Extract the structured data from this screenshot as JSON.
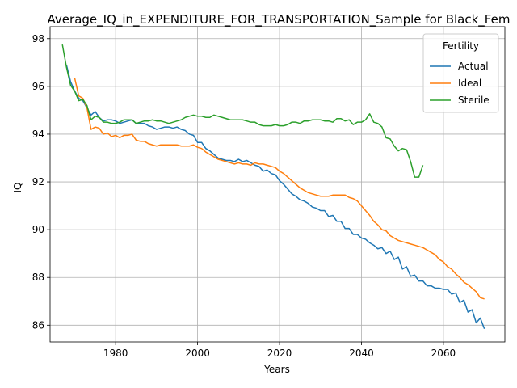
{
  "chart_data": {
    "type": "line",
    "title": "Average_IQ_in_EXPENDITURE_FOR_TRANSPORTATION_Sample for Black_Fem",
    "xlabel": "Years",
    "ylabel": "IQ",
    "xlim": [
      1964,
      2075
    ],
    "ylim": [
      85.3,
      98.5
    ],
    "xticks": [
      1980,
      2000,
      2020,
      2040,
      2060
    ],
    "yticks": [
      86,
      88,
      90,
      92,
      94,
      96,
      98
    ],
    "grid": true,
    "legend": {
      "title": "Fertility",
      "placement": "top-right"
    },
    "series": [
      {
        "name": "Actual",
        "color": "#1f77b4",
        "points": [
          [
            1968,
            96.9
          ],
          [
            1969,
            96.2
          ],
          [
            1970,
            95.8
          ],
          [
            1971,
            95.5
          ],
          [
            1972,
            95.4
          ],
          [
            1973,
            95.1
          ],
          [
            1974,
            94.8
          ],
          [
            1975,
            94.95
          ],
          [
            1976,
            94.7
          ],
          [
            1977,
            94.55
          ],
          [
            1978,
            94.6
          ],
          [
            1979,
            94.6
          ],
          [
            1980,
            94.55
          ],
          [
            1981,
            94.45
          ],
          [
            1982,
            94.5
          ],
          [
            1983,
            94.55
          ],
          [
            1984,
            94.6
          ],
          [
            1985,
            94.45
          ],
          [
            1986,
            94.45
          ],
          [
            1987,
            94.45
          ],
          [
            1988,
            94.35
          ],
          [
            1989,
            94.3
          ],
          [
            1990,
            94.2
          ],
          [
            1991,
            94.25
          ],
          [
            1992,
            94.3
          ],
          [
            1993,
            94.3
          ],
          [
            1994,
            94.25
          ],
          [
            1995,
            94.3
          ],
          [
            1996,
            94.2
          ],
          [
            1997,
            94.15
          ],
          [
            1998,
            94.0
          ],
          [
            1999,
            93.95
          ],
          [
            2000,
            93.65
          ],
          [
            2001,
            93.65
          ],
          [
            2002,
            93.4
          ],
          [
            2003,
            93.3
          ],
          [
            2004,
            93.15
          ],
          [
            2005,
            93.0
          ],
          [
            2006,
            92.95
          ],
          [
            2007,
            92.9
          ],
          [
            2008,
            92.9
          ],
          [
            2009,
            92.85
          ],
          [
            2010,
            92.95
          ],
          [
            2011,
            92.85
          ],
          [
            2012,
            92.9
          ],
          [
            2013,
            92.8
          ],
          [
            2014,
            92.7
          ],
          [
            2015,
            92.65
          ],
          [
            2016,
            92.45
          ],
          [
            2017,
            92.5
          ],
          [
            2018,
            92.35
          ],
          [
            2019,
            92.3
          ],
          [
            2020,
            92.05
          ],
          [
            2021,
            91.9
          ],
          [
            2022,
            91.7
          ],
          [
            2023,
            91.5
          ],
          [
            2024,
            91.4
          ],
          [
            2025,
            91.25
          ],
          [
            2026,
            91.2
          ],
          [
            2027,
            91.1
          ],
          [
            2028,
            90.95
          ],
          [
            2029,
            90.9
          ],
          [
            2030,
            90.8
          ],
          [
            2031,
            90.8
          ],
          [
            2032,
            90.55
          ],
          [
            2033,
            90.6
          ],
          [
            2034,
            90.35
          ],
          [
            2035,
            90.35
          ],
          [
            2036,
            90.05
          ],
          [
            2037,
            90.05
          ],
          [
            2038,
            89.8
          ],
          [
            2039,
            89.8
          ],
          [
            2040,
            89.65
          ],
          [
            2041,
            89.6
          ],
          [
            2042,
            89.45
          ],
          [
            2043,
            89.35
          ],
          [
            2044,
            89.2
          ],
          [
            2045,
            89.25
          ],
          [
            2046,
            89.0
          ],
          [
            2047,
            89.1
          ],
          [
            2048,
            88.75
          ],
          [
            2049,
            88.85
          ],
          [
            2050,
            88.35
          ],
          [
            2051,
            88.45
          ],
          [
            2052,
            88.05
          ],
          [
            2053,
            88.1
          ],
          [
            2054,
            87.85
          ],
          [
            2055,
            87.85
          ],
          [
            2056,
            87.65
          ],
          [
            2057,
            87.65
          ],
          [
            2058,
            87.55
          ],
          [
            2059,
            87.55
          ],
          [
            2060,
            87.5
          ],
          [
            2061,
            87.5
          ],
          [
            2062,
            87.3
          ],
          [
            2063,
            87.35
          ],
          [
            2064,
            86.95
          ],
          [
            2065,
            87.05
          ],
          [
            2066,
            86.55
          ],
          [
            2067,
            86.65
          ],
          [
            2068,
            86.1
          ],
          [
            2069,
            86.3
          ],
          [
            2070,
            85.85
          ]
        ]
      },
      {
        "name": "Ideal",
        "color": "#ff7f0e",
        "points": [
          [
            1970,
            96.35
          ],
          [
            1971,
            95.6
          ],
          [
            1972,
            95.5
          ],
          [
            1973,
            95.1
          ],
          [
            1974,
            94.2
          ],
          [
            1975,
            94.3
          ],
          [
            1976,
            94.25
          ],
          [
            1977,
            94.0
          ],
          [
            1978,
            94.05
          ],
          [
            1979,
            93.9
          ],
          [
            1980,
            93.95
          ],
          [
            1981,
            93.85
          ],
          [
            1982,
            93.95
          ],
          [
            1983,
            93.95
          ],
          [
            1984,
            94.0
          ],
          [
            1985,
            93.75
          ],
          [
            1986,
            93.7
          ],
          [
            1987,
            93.7
          ],
          [
            1988,
            93.6
          ],
          [
            1989,
            93.55
          ],
          [
            1990,
            93.5
          ],
          [
            1991,
            93.55
          ],
          [
            1992,
            93.55
          ],
          [
            1993,
            93.55
          ],
          [
            1994,
            93.55
          ],
          [
            1995,
            93.55
          ],
          [
            1996,
            93.5
          ],
          [
            1997,
            93.5
          ],
          [
            1998,
            93.5
          ],
          [
            1999,
            93.55
          ],
          [
            2000,
            93.45
          ],
          [
            2001,
            93.4
          ],
          [
            2002,
            93.25
          ],
          [
            2003,
            93.15
          ],
          [
            2004,
            93.05
          ],
          [
            2005,
            92.95
          ],
          [
            2006,
            92.9
          ],
          [
            2007,
            92.85
          ],
          [
            2008,
            92.8
          ],
          [
            2009,
            92.75
          ],
          [
            2010,
            92.8
          ],
          [
            2011,
            92.75
          ],
          [
            2012,
            92.75
          ],
          [
            2013,
            92.7
          ],
          [
            2014,
            92.8
          ],
          [
            2015,
            92.75
          ],
          [
            2016,
            92.75
          ],
          [
            2017,
            92.7
          ],
          [
            2018,
            92.65
          ],
          [
            2019,
            92.6
          ],
          [
            2020,
            92.45
          ],
          [
            2021,
            92.35
          ],
          [
            2022,
            92.2
          ],
          [
            2023,
            92.05
          ],
          [
            2024,
            91.9
          ],
          [
            2025,
            91.75
          ],
          [
            2026,
            91.65
          ],
          [
            2027,
            91.55
          ],
          [
            2028,
            91.5
          ],
          [
            2029,
            91.45
          ],
          [
            2030,
            91.4
          ],
          [
            2031,
            91.4
          ],
          [
            2032,
            91.4
          ],
          [
            2033,
            91.45
          ],
          [
            2034,
            91.45
          ],
          [
            2035,
            91.45
          ],
          [
            2036,
            91.45
          ],
          [
            2037,
            91.35
          ],
          [
            2038,
            91.3
          ],
          [
            2039,
            91.2
          ],
          [
            2040,
            91.0
          ],
          [
            2041,
            90.8
          ],
          [
            2042,
            90.6
          ],
          [
            2043,
            90.35
          ],
          [
            2044,
            90.2
          ],
          [
            2045,
            90.0
          ],
          [
            2046,
            89.95
          ],
          [
            2047,
            89.75
          ],
          [
            2048,
            89.65
          ],
          [
            2049,
            89.55
          ],
          [
            2050,
            89.5
          ],
          [
            2051,
            89.45
          ],
          [
            2052,
            89.4
          ],
          [
            2053,
            89.35
          ],
          [
            2054,
            89.3
          ],
          [
            2055,
            89.25
          ],
          [
            2056,
            89.15
          ],
          [
            2057,
            89.05
          ],
          [
            2058,
            88.95
          ],
          [
            2059,
            88.75
          ],
          [
            2060,
            88.65
          ],
          [
            2061,
            88.45
          ],
          [
            2062,
            88.35
          ],
          [
            2063,
            88.15
          ],
          [
            2064,
            88.0
          ],
          [
            2065,
            87.8
          ],
          [
            2066,
            87.7
          ],
          [
            2067,
            87.55
          ],
          [
            2068,
            87.4
          ],
          [
            2069,
            87.15
          ],
          [
            2070,
            87.1
          ]
        ]
      },
      {
        "name": "Sterile",
        "color": "#2ca02c",
        "points": [
          [
            1967,
            97.75
          ],
          [
            1968,
            96.8
          ],
          [
            1969,
            96.05
          ],
          [
            1970,
            95.8
          ],
          [
            1971,
            95.4
          ],
          [
            1972,
            95.45
          ],
          [
            1973,
            95.2
          ],
          [
            1974,
            94.6
          ],
          [
            1975,
            94.75
          ],
          [
            1976,
            94.7
          ],
          [
            1977,
            94.5
          ],
          [
            1978,
            94.5
          ],
          [
            1979,
            94.45
          ],
          [
            1980,
            94.45
          ],
          [
            1981,
            94.5
          ],
          [
            1982,
            94.6
          ],
          [
            1983,
            94.6
          ],
          [
            1984,
            94.6
          ],
          [
            1985,
            94.45
          ],
          [
            1986,
            94.5
          ],
          [
            1987,
            94.55
          ],
          [
            1988,
            94.55
          ],
          [
            1989,
            94.6
          ],
          [
            1990,
            94.55
          ],
          [
            1991,
            94.55
          ],
          [
            1992,
            94.5
          ],
          [
            1993,
            94.45
          ],
          [
            1994,
            94.5
          ],
          [
            1995,
            94.55
          ],
          [
            1996,
            94.6
          ],
          [
            1997,
            94.7
          ],
          [
            1998,
            94.75
          ],
          [
            1999,
            94.8
          ],
          [
            2000,
            94.75
          ],
          [
            2001,
            94.75
          ],
          [
            2002,
            94.7
          ],
          [
            2003,
            94.7
          ],
          [
            2004,
            94.8
          ],
          [
            2005,
            94.75
          ],
          [
            2006,
            94.7
          ],
          [
            2007,
            94.65
          ],
          [
            2008,
            94.6
          ],
          [
            2009,
            94.6
          ],
          [
            2010,
            94.6
          ],
          [
            2011,
            94.6
          ],
          [
            2012,
            94.55
          ],
          [
            2013,
            94.5
          ],
          [
            2014,
            94.5
          ],
          [
            2015,
            94.4
          ],
          [
            2016,
            94.35
          ],
          [
            2017,
            94.35
          ],
          [
            2018,
            94.35
          ],
          [
            2019,
            94.4
          ],
          [
            2020,
            94.35
          ],
          [
            2021,
            94.35
          ],
          [
            2022,
            94.4
          ],
          [
            2023,
            94.5
          ],
          [
            2024,
            94.5
          ],
          [
            2025,
            94.45
          ],
          [
            2026,
            94.55
          ],
          [
            2027,
            94.55
          ],
          [
            2028,
            94.6
          ],
          [
            2029,
            94.6
          ],
          [
            2030,
            94.6
          ],
          [
            2031,
            94.55
          ],
          [
            2032,
            94.55
          ],
          [
            2033,
            94.5
          ],
          [
            2034,
            94.65
          ],
          [
            2035,
            94.65
          ],
          [
            2036,
            94.55
          ],
          [
            2037,
            94.6
          ],
          [
            2038,
            94.4
          ],
          [
            2039,
            94.5
          ],
          [
            2040,
            94.5
          ],
          [
            2041,
            94.6
          ],
          [
            2042,
            94.85
          ],
          [
            2043,
            94.5
          ],
          [
            2044,
            94.45
          ],
          [
            2045,
            94.3
          ],
          [
            2046,
            93.85
          ],
          [
            2047,
            93.8
          ],
          [
            2048,
            93.5
          ],
          [
            2049,
            93.3
          ],
          [
            2050,
            93.4
          ],
          [
            2051,
            93.35
          ],
          [
            2052,
            92.85
          ],
          [
            2053,
            92.2
          ],
          [
            2054,
            92.2
          ],
          [
            2055,
            92.7
          ]
        ]
      }
    ]
  }
}
